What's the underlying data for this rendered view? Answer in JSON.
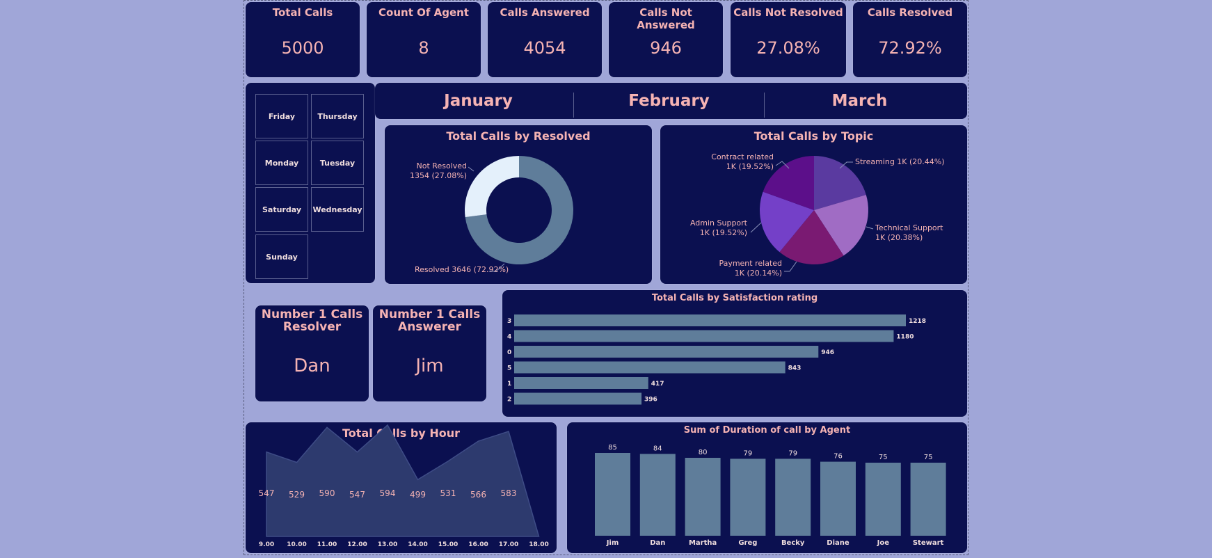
{
  "kpis": [
    {
      "title": "Total Calls",
      "value": "5000"
    },
    {
      "title": "Count Of Agent",
      "value": "8"
    },
    {
      "title": "Calls Answered",
      "value": "4054"
    },
    {
      "title": "Calls Not Answered",
      "value": "946"
    },
    {
      "title": "Calls Not Resolved",
      "value": "27.08%"
    },
    {
      "title": "Calls Resolved",
      "value": "72.92%"
    }
  ],
  "days": [
    "Friday",
    "Thursday",
    "Monday",
    "Tuesday",
    "Saturday",
    "Wednesday",
    "Sunday"
  ],
  "months": [
    "January",
    "February",
    "March"
  ],
  "top_agents": {
    "resolver_title": "Number 1 Calls Resolver",
    "resolver": "Dan",
    "answerer_title": "Number 1 Calls Answerer",
    "answerer": "Jim"
  },
  "colors": {
    "bar": "#5f7d9a",
    "panel": "#0b1050",
    "text": "#f5b3b3",
    "area": "#2d3a6e"
  },
  "chart_data": [
    {
      "type": "pie",
      "title": "Total Calls by Resolved",
      "slices": [
        {
          "label": "Resolved",
          "value": 3646,
          "display": "Resolved 3646 (72.92%)",
          "color": "#5f7d9a"
        },
        {
          "label": "Not Resolved",
          "value": 1354,
          "display1": "Not Resolved",
          "display2": "1354 (27.08%)",
          "color": "#e4f0fb"
        }
      ]
    },
    {
      "type": "pie",
      "title": "Total Calls by Topic",
      "slices": [
        {
          "label": "Streaming",
          "value": 20.44,
          "display1": "Streaming 1K (20.44%)",
          "color": "#5a3aa0"
        },
        {
          "label": "Technical Support",
          "value": 20.38,
          "display1": "Technical Support",
          "display2": "1K (20.38%)",
          "color": "#a06cc4"
        },
        {
          "label": "Payment related",
          "value": 20.14,
          "display1": "Payment related",
          "display2": "1K (20.14%)",
          "color": "#7a1a72"
        },
        {
          "label": "Admin Support",
          "value": 19.52,
          "display1": "Admin Support",
          "display2": "1K (19.52%)",
          "color": "#7440c8"
        },
        {
          "label": "Contract related",
          "value": 19.52,
          "display1": "Contract related",
          "display2": "1K (19.52%)",
          "color": "#5c0f8a"
        }
      ]
    },
    {
      "type": "bar",
      "title": "Total Calls by Satisfaction rating",
      "categories": [
        "3",
        "4",
        "0",
        "5",
        "1",
        "2"
      ],
      "values": [
        1218,
        1180,
        946,
        843,
        417,
        396
      ]
    },
    {
      "type": "area",
      "title": "Total Calls by Hour",
      "categories": [
        "9.00",
        "10.00",
        "11.00",
        "12.00",
        "13.00",
        "14.00",
        "15.00",
        "16.00",
        "17.00",
        "18.00"
      ],
      "values": [
        547,
        529,
        590,
        547,
        594,
        499,
        531,
        566,
        583,
        null
      ]
    },
    {
      "type": "bar",
      "title": "Sum of Duration of call by Agent",
      "categories": [
        "Jim",
        "Dan",
        "Martha",
        "Greg",
        "Becky",
        "Diane",
        "Joe",
        "Stewart"
      ],
      "values": [
        85,
        84,
        80,
        79,
        79,
        76,
        75,
        75
      ]
    }
  ]
}
